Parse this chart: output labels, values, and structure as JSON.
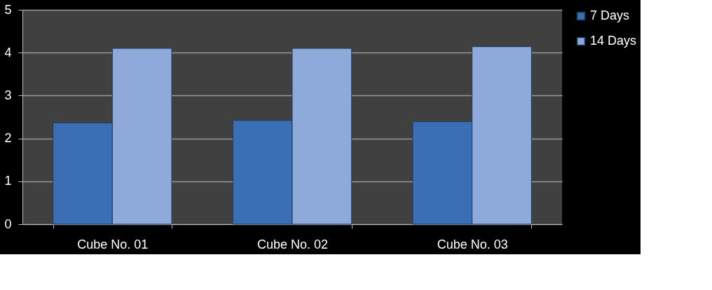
{
  "chart_data": {
    "type": "bar",
    "categories": [
      "Cube No. 01",
      "Cube No. 02",
      "Cube No. 03"
    ],
    "series": [
      {
        "name": "7 Days",
        "color": "#3a6fb5",
        "values": [
          2.36,
          2.42,
          2.39
        ]
      },
      {
        "name": "14 Days",
        "color": "#8eaadb",
        "values": [
          4.1,
          4.1,
          4.14
        ]
      }
    ],
    "ylim": [
      0,
      5
    ],
    "yticks": [
      0,
      1,
      2,
      3,
      4,
      5
    ],
    "grid": "y",
    "legend": "right"
  }
}
